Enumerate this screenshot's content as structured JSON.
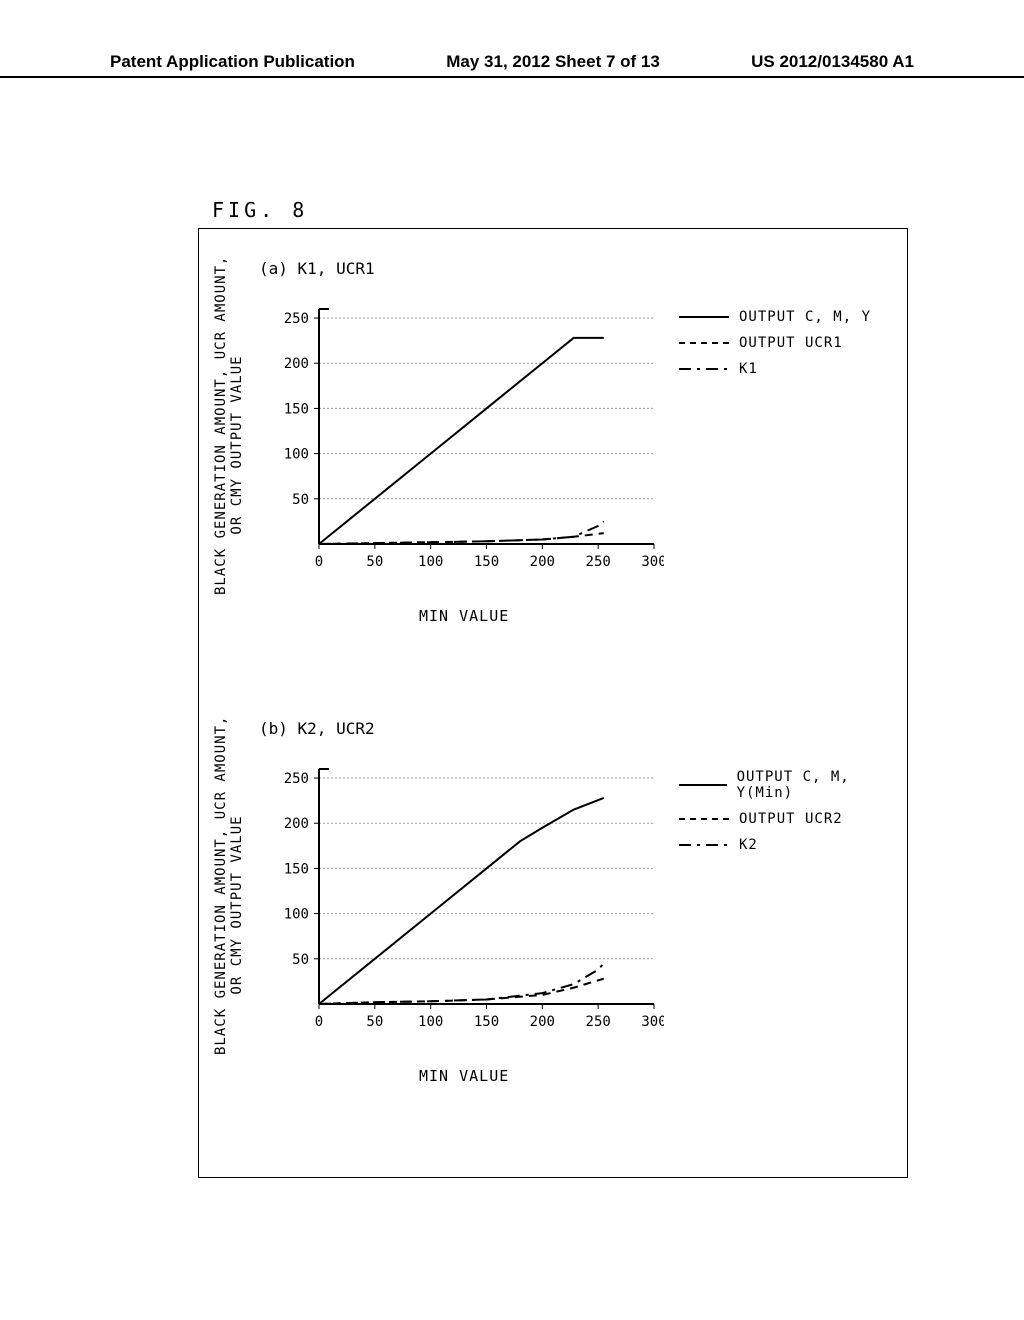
{
  "header": {
    "left": "Patent Application Publication",
    "middle": "May 31, 2012  Sheet 7 of 13",
    "right": "US 2012/0134580 A1"
  },
  "figure_label": "FIG. 8",
  "chart_a": {
    "title": "(a)   K1, UCR1",
    "type": "line",
    "y_label": "BLACK GENERATION AMOUNT, UCR AMOUNT,\nOR CMY OUTPUT VALUE",
    "x_label": "MIN VALUE",
    "xlim": [
      0,
      300
    ],
    "ylim": [
      0,
      260
    ],
    "x_ticks": [
      0,
      50,
      100,
      150,
      200,
      250,
      300
    ],
    "y_ticks": [
      50,
      100,
      150,
      200,
      250
    ],
    "grid_color": "#999999",
    "axis_color": "#000000",
    "legend": [
      {
        "label": "OUTPUT C, M, Y",
        "style": "solid",
        "color": "#000000"
      },
      {
        "label": "OUTPUT UCR1",
        "style": "dash",
        "color": "#000000"
      },
      {
        "label": "K1",
        "style": "dashdot",
        "color": "#000000"
      }
    ],
    "series": {
      "cmy": {
        "x": [
          0,
          50,
          100,
          150,
          200,
          228,
          255
        ],
        "y": [
          0,
          50,
          100,
          150,
          200,
          228,
          228
        ],
        "style": "solid"
      },
      "ucr1": {
        "x": [
          0,
          50,
          100,
          150,
          200,
          228,
          255
        ],
        "y": [
          0,
          1,
          2,
          3,
          5,
          8,
          12
        ],
        "style": "dash"
      },
      "k1": {
        "x": [
          0,
          50,
          100,
          150,
          200,
          228,
          250,
          255
        ],
        "y": [
          0,
          1,
          2,
          3,
          5,
          8,
          20,
          25
        ],
        "style": "dashdot"
      }
    }
  },
  "chart_b": {
    "title": "(b)   K2, UCR2",
    "type": "line",
    "y_label": "BLACK GENERATION AMOUNT, UCR AMOUNT,\nOR CMY OUTPUT VALUE",
    "x_label": "MIN VALUE",
    "xlim": [
      0,
      300
    ],
    "ylim": [
      0,
      260
    ],
    "x_ticks": [
      0,
      50,
      100,
      150,
      200,
      250,
      300
    ],
    "y_ticks": [
      50,
      100,
      150,
      200,
      250
    ],
    "grid_color": "#999999",
    "axis_color": "#000000",
    "legend": [
      {
        "label": "OUTPUT C, M, Y(Min)",
        "style": "solid",
        "color": "#000000"
      },
      {
        "label": "OUTPUT UCR2",
        "style": "dash",
        "color": "#000000"
      },
      {
        "label": "K2",
        "style": "dashdot",
        "color": "#000000"
      }
    ],
    "series": {
      "cmy": {
        "x": [
          0,
          50,
          100,
          150,
          180,
          200,
          228,
          255
        ],
        "y": [
          0,
          50,
          100,
          150,
          180,
          195,
          215,
          228
        ],
        "style": "solid"
      },
      "ucr2": {
        "x": [
          0,
          50,
          100,
          150,
          200,
          228,
          255
        ],
        "y": [
          0,
          2,
          3,
          5,
          10,
          18,
          28
        ],
        "style": "dash"
      },
      "k2": {
        "x": [
          0,
          50,
          100,
          150,
          200,
          228,
          250,
          255
        ],
        "y": [
          0,
          2,
          3,
          5,
          12,
          22,
          38,
          45
        ],
        "style": "dashdot"
      }
    }
  }
}
